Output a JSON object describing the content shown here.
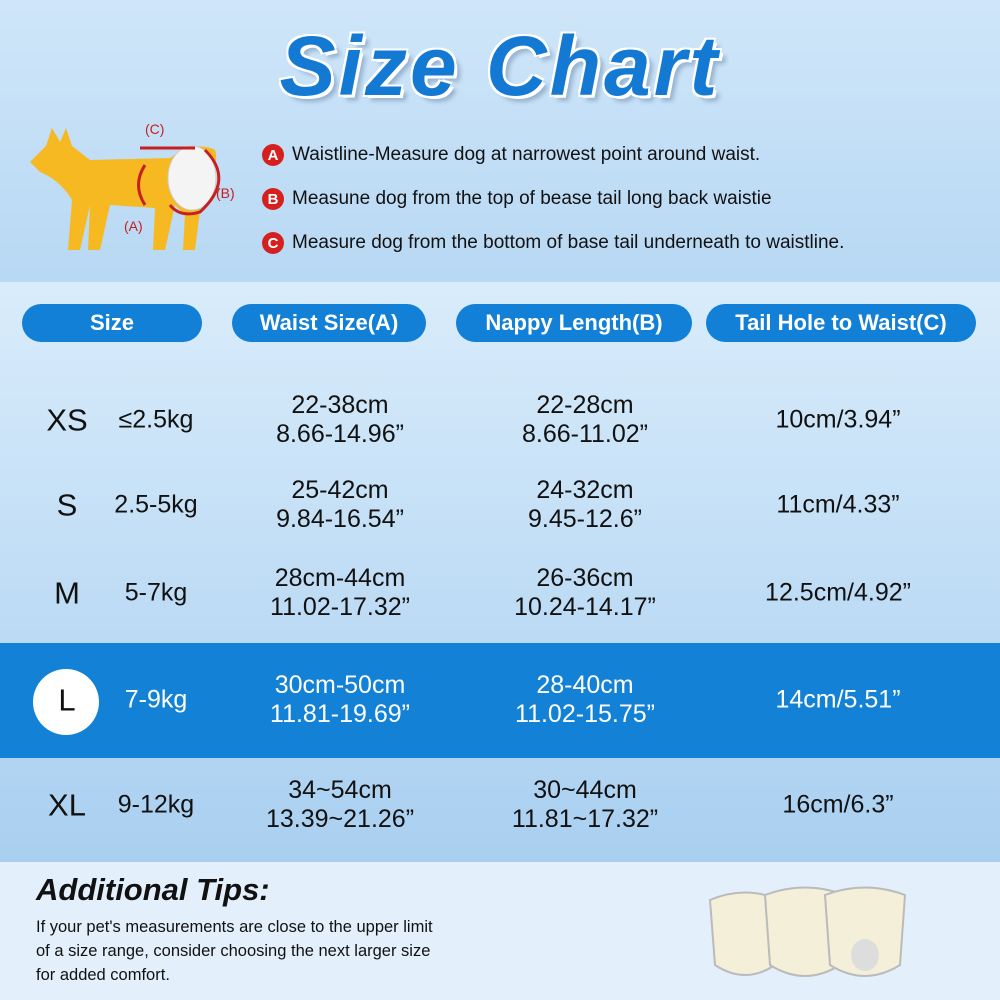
{
  "title": "Size Chart",
  "diagram": {
    "labels": [
      "(C)",
      "(B)",
      "(A)"
    ]
  },
  "notes": [
    {
      "marker": "A",
      "text": "Waistline-Measure dog at narrowest point around waist."
    },
    {
      "marker": "B",
      "text": "Measune dog from the top of bease tail long back waistie"
    },
    {
      "marker": "C",
      "text": "Measure dog from the bottom of base tail underneath to waistline."
    }
  ],
  "table": {
    "headers": [
      "Size",
      "Waist Size(A)",
      "Nappy Length(B)",
      "Tail Hole to Waist(C)"
    ],
    "rows": [
      {
        "size": "XS",
        "weight": "≤2.5kg",
        "waist": [
          "22-38cm",
          "8.66-14.96”"
        ],
        "nappy": [
          "22-28cm",
          "8.66-11.02”"
        ],
        "tail": "10cm/3.94”"
      },
      {
        "size": "S",
        "weight": "2.5-5kg",
        "waist": [
          "25-42cm",
          "9.84-16.54”"
        ],
        "nappy": [
          "24-32cm",
          "9.45-12.6”"
        ],
        "tail": "11cm/4.33”"
      },
      {
        "size": "M",
        "weight": "5-7kg",
        "waist": [
          "28cm-44cm",
          "11.02-17.32”"
        ],
        "nappy": [
          "26-36cm",
          "10.24-14.17”"
        ],
        "tail": "12.5cm/4.92”"
      },
      {
        "size": "L",
        "weight": "7-9kg",
        "waist": [
          "30cm-50cm",
          "11.81-19.69”"
        ],
        "nappy": [
          "28-40cm",
          "11.02-15.75”"
        ],
        "tail": "14cm/5.51”"
      },
      {
        "size": "XL",
        "weight": "9-12kg",
        "waist": [
          "34~54cm",
          "13.39~21.26”"
        ],
        "nappy": [
          "30~44cm",
          "11.81~17.32”"
        ],
        "tail": "16cm/6.3”"
      }
    ]
  },
  "tips": {
    "title": "Additional Tips:",
    "lines": [
      "If your pet's measurements are close to the upper limit",
      "of a size range, consider choosing the next larger size",
      "for added comfort."
    ]
  }
}
